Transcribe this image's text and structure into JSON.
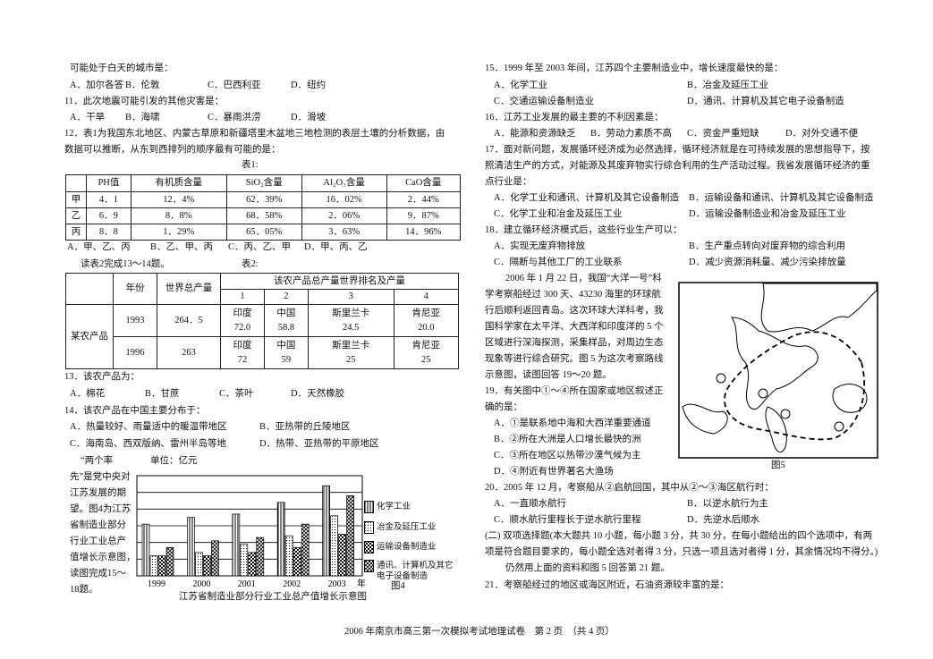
{
  "left": {
    "q10_end": "可能处于白天的城市是：",
    "q10_options": [
      "A．加尔各答",
      "B．伦敦",
      "C．巴西利亚",
      "D．纽约"
    ],
    "q11": {
      "stem": "11．此次地震可能引发的其他灾害是：",
      "options": [
        "A．干旱",
        "B．海啸",
        "C．暴雨洪涝",
        "D．滑坡"
      ]
    },
    "q12": {
      "stem": [
        "12．表1为我国东北地区、内蒙古草原和新疆塔里木盆地三地检测的表层土壤的分析数据，由",
        "数据可以推断，从东到西排列的顺序最有可能的是："
      ],
      "options": [
        "A．甲、乙、丙",
        "B．乙、甲、丙",
        "C．丙、乙、甲",
        "D．甲、丙、乙"
      ]
    },
    "table1": {
      "caption": "表1:",
      "header": [
        "PH值",
        "有机质含量",
        "SiO₂含量",
        "Al₂O₃含量",
        "CaO含量"
      ],
      "rows": [
        [
          "甲",
          "4．1",
          "12．4%",
          "62．39%",
          "16．02%",
          "2．44%"
        ],
        [
          "乙",
          "6．9",
          "8．8%",
          "68．58%",
          "2．06%",
          "9．87%"
        ],
        [
          "丙",
          "8．8",
          "1．29%",
          "65．05%",
          "3．63%",
          "14．96%"
        ]
      ]
    },
    "read_note": "读表2完成13～14题。",
    "table2": {
      "caption": "表2:",
      "header": {
        "year": "年份",
        "total": "世界总产量",
        "rank": "该农产品总产量世界排名及产量",
        "ranks": [
          "1",
          "2",
          "3",
          "4"
        ]
      },
      "row_label": "某农产品",
      "rows": [
        {
          "year": "1993",
          "total": "264．5",
          "top": [
            [
              "印度",
              "72.0"
            ],
            [
              "中国",
              "58.8"
            ],
            [
              "斯里兰卡",
              "24.5"
            ],
            [
              "肯尼亚",
              "20.0"
            ]
          ]
        },
        {
          "year": "1996",
          "total": "263",
          "top": [
            [
              "印度",
              "72"
            ],
            [
              "中国",
              "59"
            ],
            [
              "斯里兰卡",
              "25"
            ],
            [
              "肯尼亚",
              "25"
            ]
          ]
        }
      ]
    },
    "q13": {
      "stem": "13．该农产品为：",
      "options": [
        "A．棉花",
        "B．甘蔗",
        "C．茶叶",
        "D．天然橡胶"
      ]
    },
    "q14": {
      "stem": "14．该农产品在中国主要分布于：",
      "options": [
        "A．热量较好、雨量适中的暖温带地区",
        "B．亚热带的丘陵地区",
        "C．海南岛、西双版纳、雷州半岛等地",
        "D．热带、亚热带的平原地区"
      ]
    },
    "intro": [
      "“两个率",
      "先”是党中央对",
      "江苏发展的期",
      "望。图4为江苏",
      "省制造业部分",
      "行业工业总产",
      "值增长示意图，",
      "读图完成15～",
      "18题。"
    ],
    "figure4_label": "图4"
  },
  "chart_data": {
    "type": "bar",
    "title": "江苏省制造业部分行业工业总产值增长示意图",
    "y_label": "单位：亿元",
    "x_label": "年",
    "categories": [
      "1999",
      "2000",
      "2001",
      "2002",
      "2003"
    ],
    "series": [
      {
        "name": "化学工业",
        "values": [
          3.1,
          3.5,
          3.7,
          4.4,
          5.4
        ]
      },
      {
        "name": "冶金及延压工业",
        "values": [
          1.2,
          1.4,
          1.9,
          2.4,
          3.6
        ]
      },
      {
        "name": "运输设备制造业",
        "values": [
          1.2,
          1.2,
          1.4,
          1.7,
          2.5
        ]
      },
      {
        "name": "通讯、计算机及其它电子设备制造",
        "values": [
          1.7,
          2.1,
          2.3,
          3.1,
          4.8
        ]
      }
    ],
    "ylim": [
      0,
      6
    ],
    "yticks": [
      1,
      2,
      3,
      4,
      5
    ],
    "grid": true
  },
  "right": {
    "q15": {
      "stem": "15．1999 年至 2003 年间，江苏四个主要制造业中，增长速度最快的是：",
      "options": [
        "A．化学工业",
        "B．冶金及延压工业",
        "C．交通运输设备制造业",
        "D．通讯、计算机及其它电子设备制造"
      ]
    },
    "q16": {
      "stem": "16．江苏工业发展的最主要的不利因素是：",
      "options": [
        "A．能源和资源缺乏",
        "B．劳动力素质不高",
        "C．资金严重短缺",
        "D．对外交通不便"
      ]
    },
    "q17": {
      "stem": [
        "17．面对新问题，发展循环经济成为必然选择，循环经济就是在可持续发展的思想指导下，按",
        "照清洁生产的方式，对能源及其废弃物实行综合利用的生产活动过程。我省发展循环经济的重",
        "点行业是："
      ],
      "options": [
        "A．化学工业和通讯、计算机及其它设备制造",
        "B．运输设备和通讯、计算机及其它设备制造",
        "C．化学工业和冶金及延压工业",
        "D．运输设备制造业和冶金及延压工业"
      ]
    },
    "q18": {
      "stem": "18．建立循环经济模式后，这些行业生产可以：",
      "options": [
        "A．实现无废弃物排放",
        "B．生产重点转向对废弃物的综合利用",
        "C．隔断与其他工厂的工业联系",
        "D．减少资源消耗量、减少污染排放量"
      ]
    },
    "passage": [
      "2006 年 1 月 22 日，我国“大洋一号”科",
      "学考察船经过 300 天、43230 海里的环球航",
      "行后顺利返回青岛。这次环球大洋科考，我",
      "国科学家在太平洋、大西洋和印度洋的 5 个",
      "区域进行深海探测，采集样品，对周边生态",
      "现象等进行综合研究。图 5 为这次考察路线",
      "示意图，读图回答 19～20 题。"
    ],
    "q19": {
      "stem": [
        "19．有关图中①～④所在国家或地区叙述正",
        "确的是："
      ],
      "options": [
        "A．①是联系地中海和大西洋重要通道",
        "B．②所在大洲是人口增长最快的洲",
        "C．③所在地区以热带沙漠气候为主",
        "D．④附近有世界著名大渔场"
      ]
    },
    "figure5_label": "图5",
    "q20": {
      "stem": "20．2005 年 12 月，考察船从②启航回国，其中从②～③海区航行时：",
      "options": [
        "A．一直顺水航行",
        "B．以逆水航行为主",
        "C．顺水航行里程长于逆水航行里程",
        "D．先逆水后顺水"
      ]
    },
    "section2": [
      "(二) 双项选择题(本大题共 10 小题，每小题 3 分，共 30 分，在每小题给出的四个选项中，有两",
      "项是符合题目要求的，每小题全选对者得 3 分，只选一项且选对者得 1 分，其余情况均不得分。)"
    ],
    "section2_note": "仍然用上面的资料和图 5 回答第 21 题。",
    "q21": "21．考察船经过的地区或海区附近，石油资源较丰富的是："
  },
  "footer": "2006 年南京市高三第一次模拟考试地理试卷　第 2 页　（共 4 页）"
}
